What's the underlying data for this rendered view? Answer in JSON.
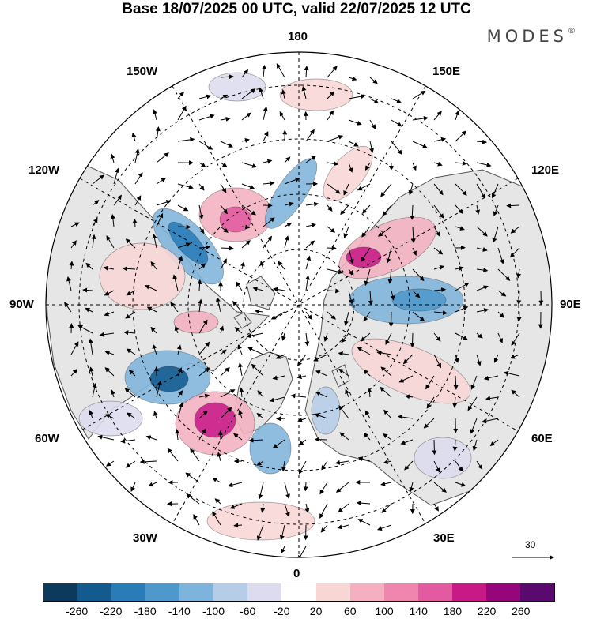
{
  "title": "Base 18/07/2025 00 UTC, valid 22/07/2025 12 UTC",
  "brand": {
    "text": "MODES",
    "mark": "®"
  },
  "longitude_labels": {
    "north": "180",
    "south": "0",
    "west": "90W",
    "east": "90E",
    "nw150": "150W",
    "nw120": "120W",
    "sw60": "60W",
    "sw30": "30W",
    "ne150": "150E",
    "ne120": "120E",
    "se60": "60E",
    "se30": "30E"
  },
  "reference_vector": {
    "value": "30"
  },
  "colorbar": {
    "colors": [
      "#0b3a5c",
      "#135b8e",
      "#2a7cb8",
      "#4e98cc",
      "#7eb4dc",
      "#b6cde8",
      "#dcdcee",
      "#ffffff",
      "#f8d6d6",
      "#f4b0c0",
      "#ee86ad",
      "#e25a9f",
      "#c71a87",
      "#96067b",
      "#5a0a6e"
    ],
    "ticks": [
      "-260",
      "-220",
      "-180",
      "-140",
      "-100",
      "-60",
      "-20",
      "20",
      "60",
      "100",
      "140",
      "180",
      "220",
      "260"
    ]
  },
  "map_style": {
    "projection": "north-polar-stereographic",
    "land_color": "#e6e6e6",
    "coastline_color": "#555555",
    "vector_color": "#000000",
    "grid": "dashed"
  }
}
